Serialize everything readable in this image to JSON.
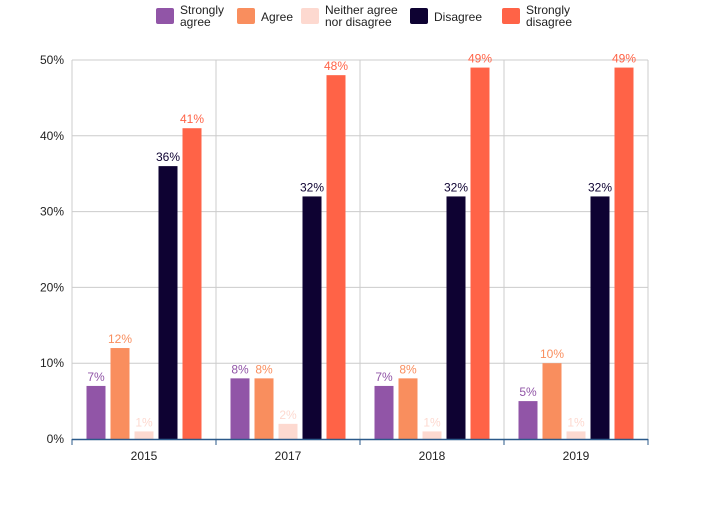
{
  "chart_data": {
    "type": "bar",
    "title": "",
    "xlabel": "",
    "ylabel": "",
    "categories": [
      "2015",
      "2017",
      "2018",
      "2019"
    ],
    "ylim": [
      0,
      50
    ],
    "yticks": [
      0,
      10,
      20,
      30,
      40,
      50
    ],
    "ytick_labels": [
      "0%",
      "10%",
      "20%",
      "30%",
      "40%",
      "50%"
    ],
    "value_suffix": "%",
    "grid": true,
    "legend_position": "top",
    "series": [
      {
        "name": "Strongly agree",
        "legend_lines": [
          "Strongly",
          "agree"
        ],
        "color": "#9155a7",
        "label_color": "#9155a7",
        "values": [
          7,
          8,
          7,
          5
        ]
      },
      {
        "name": "Agree",
        "legend_lines": [
          "Agree"
        ],
        "color": "#f98e5e",
        "label_color": "#f98e5e",
        "values": [
          12,
          8,
          8,
          10
        ]
      },
      {
        "name": "Neither agree nor disagree",
        "legend_lines": [
          "Neither agree",
          "nor disagree"
        ],
        "color": "#fdd9d0",
        "label_color": "#fdd9d0",
        "values": [
          1,
          2,
          1,
          1
        ]
      },
      {
        "name": "Disagree",
        "legend_lines": [
          "Disagree"
        ],
        "color": "#0e0232",
        "label_color": "#0e0232",
        "values": [
          36,
          32,
          32,
          32
        ]
      },
      {
        "name": "Strongly disagree",
        "legend_lines": [
          "Strongly",
          "disagree"
        ],
        "color": "#ff6347",
        "label_color": "#ff6347",
        "values": [
          41,
          48,
          49,
          49
        ]
      }
    ]
  }
}
